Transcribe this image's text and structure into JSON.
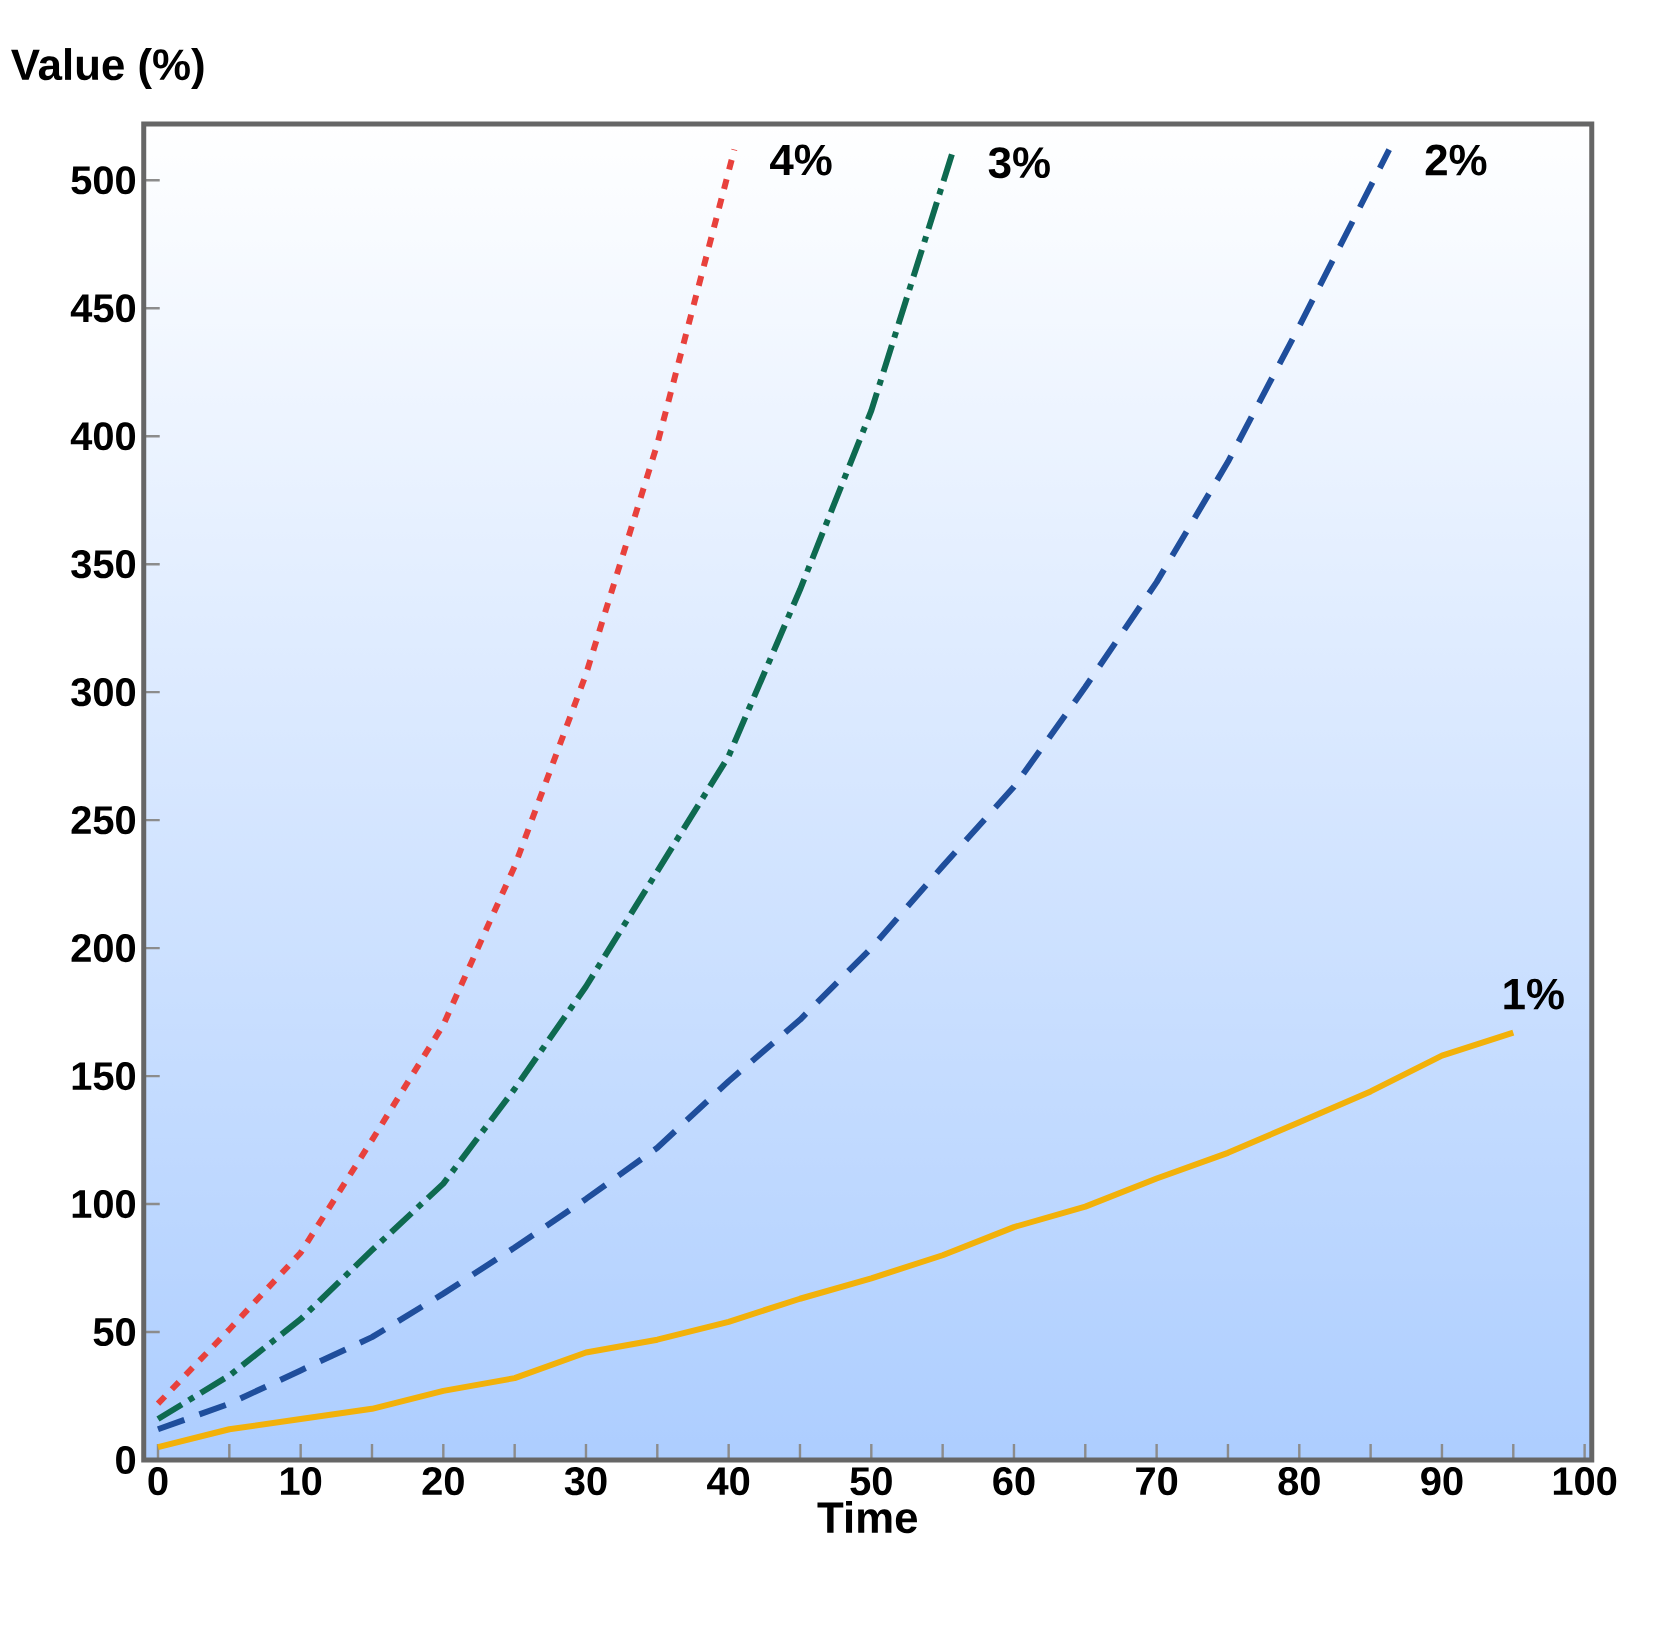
{
  "chart_data": {
    "type": "line",
    "xlabel": "Time",
    "ylabel": "Value (%)",
    "xlim": [
      -1,
      100.5
    ],
    "ylim": [
      0,
      522
    ],
    "xticks": [
      0,
      10,
      20,
      30,
      40,
      50,
      60,
      70,
      80,
      90,
      100
    ],
    "yticks": [
      0,
      50,
      100,
      150,
      200,
      250,
      300,
      350,
      400,
      450,
      500
    ],
    "grid": false,
    "legend": false,
    "marker": "none",
    "series": [
      {
        "name": "4%",
        "color": "#e8413c",
        "line_style": "dotted",
        "x": [
          0,
          5,
          10,
          15,
          20,
          25,
          30,
          35,
          40.4
        ],
        "values": [
          22,
          51,
          81,
          125,
          170,
          232,
          307,
          397,
          512
        ]
      },
      {
        "name": "3%",
        "color": "#0e6a50",
        "line_style": "dashdot",
        "x": [
          0,
          5,
          10,
          15,
          20,
          25,
          30,
          35,
          40,
          45,
          50,
          55.7
        ],
        "values": [
          16,
          33,
          55,
          82,
          108,
          145,
          185,
          230,
          275,
          340,
          410,
          511
        ]
      },
      {
        "name": "2%",
        "color": "#1f4e9c",
        "line_style": "dashed",
        "x": [
          0,
          5,
          10,
          15,
          20,
          25,
          30,
          35,
          40,
          45,
          50,
          55,
          60,
          65,
          70,
          75,
          80,
          86.3
        ],
        "values": [
          12,
          22,
          35,
          48,
          65,
          83,
          102,
          122,
          148,
          172,
          200,
          232,
          263,
          302,
          343,
          390,
          443,
          512
        ]
      },
      {
        "name": "1%",
        "color": "#f2b10a",
        "line_style": "solid",
        "x": [
          0,
          5,
          10,
          15,
          20,
          25,
          30,
          35,
          40,
          45,
          50,
          55,
          60,
          65,
          70,
          75,
          80,
          85,
          90,
          95
        ],
        "values": [
          5,
          12,
          16,
          20,
          27,
          32,
          42,
          47,
          54,
          63,
          71,
          80,
          91,
          99,
          110,
          120,
          132,
          144,
          158,
          167
        ]
      }
    ]
  }
}
